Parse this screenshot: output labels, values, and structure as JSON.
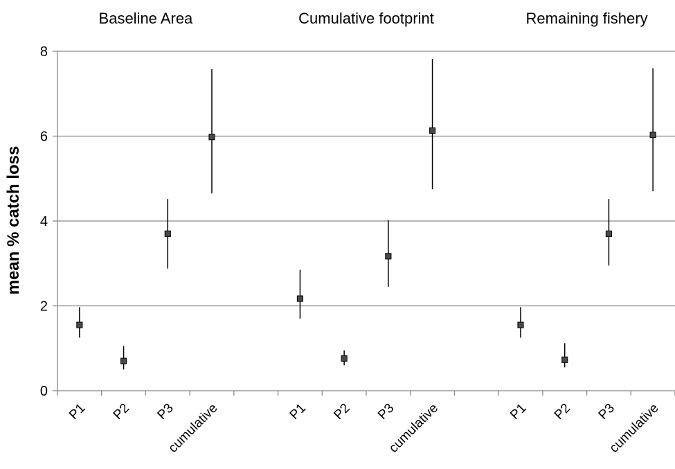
{
  "chart_data": {
    "type": "scatter",
    "ylabel": "mean % catch loss",
    "ylim": [
      0,
      8
    ],
    "yticks": [
      "0",
      "2",
      "4",
      "6",
      "8"
    ],
    "grid": true,
    "groups": [
      {
        "title": "Baseline Area",
        "categories": [
          "P1",
          "P2",
          "P3",
          "cumulative"
        ],
        "values": [
          1.55,
          0.7,
          3.7,
          5.98
        ],
        "low": [
          1.25,
          0.5,
          2.88,
          4.65
        ],
        "high": [
          1.97,
          1.05,
          4.52,
          7.58
        ]
      },
      {
        "title": "Cumulative footprint",
        "categories": [
          "P1",
          "P2",
          "P3",
          "cumulative"
        ],
        "values": [
          2.17,
          0.76,
          3.17,
          6.13
        ],
        "low": [
          1.7,
          0.6,
          2.45,
          4.75
        ],
        "high": [
          2.85,
          0.95,
          4.02,
          7.82
        ]
      },
      {
        "title": "Remaining fishery",
        "categories": [
          "P1",
          "P2",
          "P3",
          "cumulative"
        ],
        "values": [
          1.55,
          0.73,
          3.7,
          6.03
        ],
        "low": [
          1.25,
          0.55,
          2.95,
          4.7
        ],
        "high": [
          1.97,
          1.12,
          4.52,
          7.6
        ]
      }
    ]
  }
}
